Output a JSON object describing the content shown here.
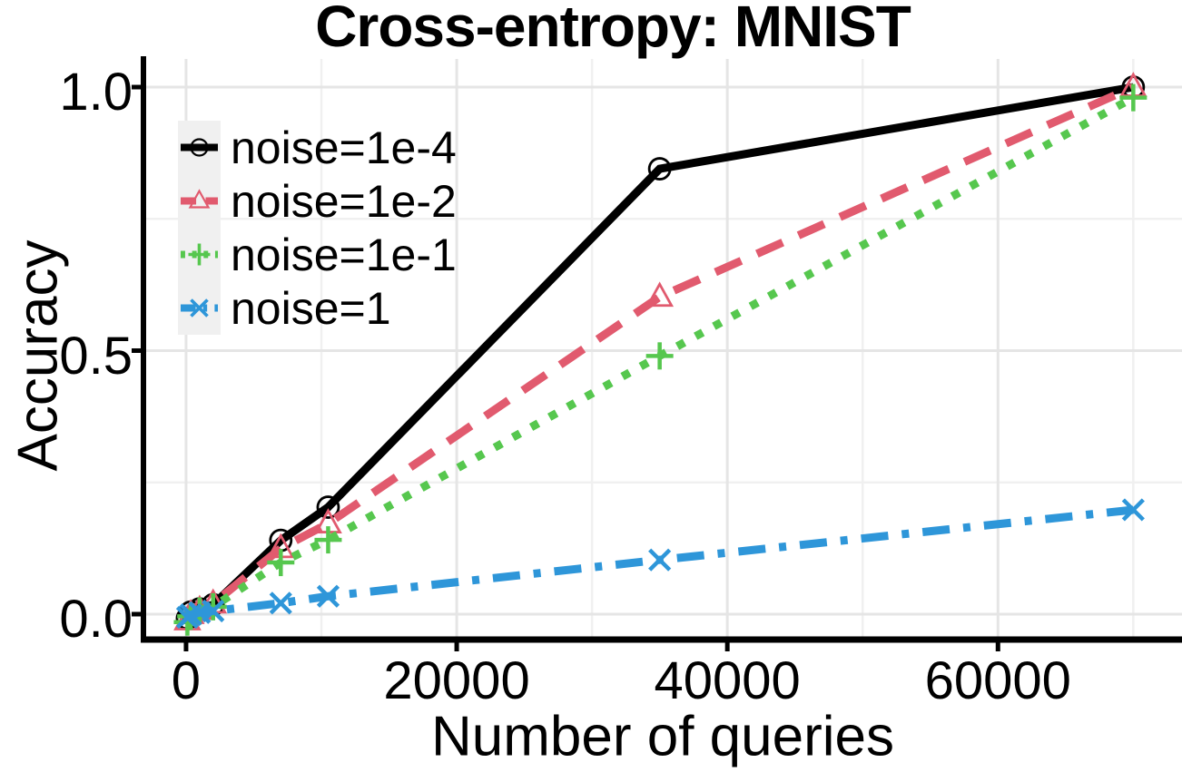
{
  "chart_data": {
    "type": "line",
    "title": "Cross-entropy: MNIST",
    "xlabel": "Number of queries",
    "ylabel": "Accuracy",
    "xlim": [
      -3150,
      73600
    ],
    "ylim": [
      -0.0482,
      1.0534
    ],
    "x_ticks": {
      "values": [
        0,
        20000,
        40000,
        60000
      ],
      "labels": [
        "0",
        "20000",
        "40000",
        "60000"
      ]
    },
    "y_ticks": {
      "values": [
        0.0,
        0.5,
        1.0
      ],
      "labels": [
        "0.0",
        "0.5",
        "1.0"
      ]
    },
    "x_minor": [
      10000,
      30000,
      50000,
      70000
    ],
    "y_minor": [
      0.25,
      0.75
    ],
    "grid": true,
    "legend_position": "top-left-inside",
    "x": [
      100,
      350,
      1000,
      2000,
      7000,
      10500,
      35000,
      70000
    ],
    "series": [
      {
        "name": "noise=1e-4",
        "color": "#000000",
        "linestyle": "solid",
        "marker": "circle",
        "y": [
          -0.008,
          0.004,
          0.01,
          0.018,
          0.14,
          0.203,
          0.845,
          1.0
        ]
      },
      {
        "name": "noise=1e-2",
        "color": "#E15A6E",
        "linestyle": "dashed",
        "marker": "triangle",
        "y": [
          -0.012,
          0.0,
          0.008,
          0.02,
          0.125,
          0.172,
          0.602,
          1.0
        ]
      },
      {
        "name": "noise=1e-1",
        "color": "#56C74E",
        "linestyle": "dotted",
        "marker": "plus",
        "y": [
          -0.015,
          -0.004,
          0.006,
          0.014,
          0.098,
          0.141,
          0.49,
          0.98
        ]
      },
      {
        "name": "noise=1",
        "color": "#2E96D9",
        "linestyle": "dashdot",
        "marker": "x",
        "y": [
          -0.006,
          -0.001,
          0.003,
          0.006,
          0.021,
          0.034,
          0.103,
          0.198
        ]
      }
    ]
  },
  "colors": {
    "background": "#FFFFFF",
    "grid_major": "#E5E5E5",
    "grid_minor": "#F0F0F0",
    "axis": "#000000",
    "text": "#000000",
    "legend_key_bg": "#F0F0F0"
  }
}
